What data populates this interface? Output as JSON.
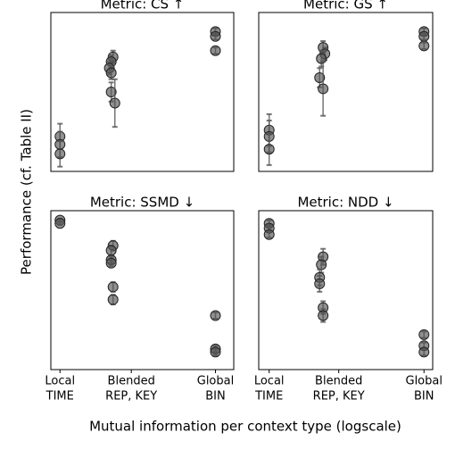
{
  "ylabel": "Performance (cf. Table II)",
  "xlabel": "Mutual information per context type (logscale)",
  "chart_data": [
    {
      "type": "scatter",
      "title": "Metric: CS ↑",
      "color": "#555555",
      "xlim": [
        0,
        1
      ],
      "ylim": [
        0,
        1
      ],
      "x": [
        0.05,
        0.05,
        0.05,
        0.34,
        0.33,
        0.32,
        0.33,
        0.33,
        0.35,
        0.9,
        0.9,
        0.9
      ],
      "values": [
        0.22,
        0.17,
        0.11,
        0.72,
        0.69,
        0.65,
        0.62,
        0.5,
        0.43,
        0.88,
        0.85,
        0.76
      ],
      "errors": [
        0.08,
        0.08,
        0.08,
        0.04,
        0.04,
        0.04,
        0.04,
        0.06,
        0.15,
        0.02,
        0.02,
        0.02
      ]
    },
    {
      "type": "scatter",
      "title": "Metric: GS ↑",
      "color": "#555555",
      "xlim": [
        0,
        1
      ],
      "ylim": [
        0,
        1
      ],
      "x": [
        0.06,
        0.06,
        0.06,
        0.37,
        0.38,
        0.36,
        0.35,
        0.37,
        0.95,
        0.95,
        0.95
      ],
      "values": [
        0.26,
        0.22,
        0.14,
        0.78,
        0.74,
        0.71,
        0.59,
        0.52,
        0.88,
        0.85,
        0.79
      ],
      "errors": [
        0.1,
        0.1,
        0.1,
        0.04,
        0.04,
        0.05,
        0.06,
        0.17,
        0.02,
        0.02,
        0.02
      ]
    },
    {
      "type": "scatter",
      "title": "Metric: SSMD ↓",
      "color": "#555555",
      "xlim": [
        0,
        1
      ],
      "ylim": [
        0,
        1
      ],
      "x": [
        0.05,
        0.05,
        0.34,
        0.33,
        0.33,
        0.33,
        0.34,
        0.34,
        0.9,
        0.9,
        0.9
      ],
      "values": [
        0.94,
        0.92,
        0.78,
        0.75,
        0.69,
        0.67,
        0.52,
        0.44,
        0.34,
        0.13,
        0.11
      ],
      "errors": [
        0.01,
        0.01,
        0.03,
        0.03,
        0.02,
        0.02,
        0.03,
        0.03,
        0.02,
        0.02,
        0.02
      ],
      "xticks": [
        {
          "value": 0.05,
          "label": [
            "Local",
            "TIME"
          ]
        },
        {
          "value": 0.44,
          "label": [
            "Blended",
            "REP, KEY"
          ]
        },
        {
          "value": 0.9,
          "label": [
            "Global",
            "BIN"
          ]
        }
      ]
    },
    {
      "type": "scatter",
      "title": "Metric: NDD ↓",
      "color": "#555555",
      "xlim": [
        0,
        1
      ],
      "ylim": [
        0,
        1
      ],
      "x": [
        0.06,
        0.06,
        0.06,
        0.37,
        0.36,
        0.35,
        0.35,
        0.37,
        0.37,
        0.95,
        0.95,
        0.95
      ],
      "values": [
        0.92,
        0.89,
        0.85,
        0.71,
        0.66,
        0.58,
        0.54,
        0.39,
        0.34,
        0.22,
        0.15,
        0.11
      ],
      "errors": [
        0.02,
        0.02,
        0.02,
        0.05,
        0.05,
        0.05,
        0.05,
        0.04,
        0.04,
        0.02,
        0.02,
        0.02
      ],
      "xticks": [
        {
          "value": 0.06,
          "label": [
            "Local",
            "TIME"
          ]
        },
        {
          "value": 0.46,
          "label": [
            "Blended",
            "REP, KEY"
          ]
        },
        {
          "value": 0.95,
          "label": [
            "Global",
            "BIN"
          ]
        }
      ]
    }
  ]
}
